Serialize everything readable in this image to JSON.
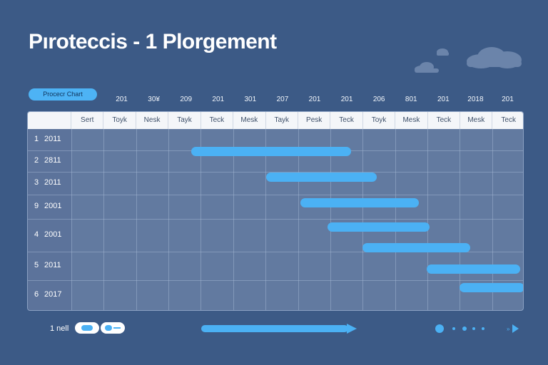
{
  "title": "Pıroteccis - 1 Plorgement",
  "pill_label": "Procecr Chart",
  "years": [
    "201",
    "30¥",
    "209",
    "201",
    "301",
    "207",
    "201",
    "201",
    "206",
    "801",
    "201",
    "2018",
    "201"
  ],
  "columns": [
    "Sert",
    "Toyk",
    "Nesk",
    "Tayk",
    "Teck",
    "Mesk",
    "Tayk",
    "Pesk",
    "Teck",
    "Toyk",
    "Mesk",
    "Teck",
    "Mesk",
    "Teck"
  ],
  "rows": [
    {
      "num": "1",
      "label": "2011"
    },
    {
      "num": "2",
      "label": "2811"
    },
    {
      "num": "3",
      "label": "2011"
    },
    {
      "num": "9",
      "label": "2001"
    },
    {
      "num": "4",
      "label": "2001"
    },
    {
      "num": "5",
      "label": "2011"
    },
    {
      "num": "6",
      "label": "2017"
    }
  ],
  "footer_label": "1 nell",
  "colors": {
    "background": "#3c5a86",
    "accent": "#4bb1f4",
    "grid": "#627aa0"
  },
  "icons": [
    "cloud-icon",
    "toggle-icon",
    "arrow-right-icon",
    "play-icon"
  ]
}
